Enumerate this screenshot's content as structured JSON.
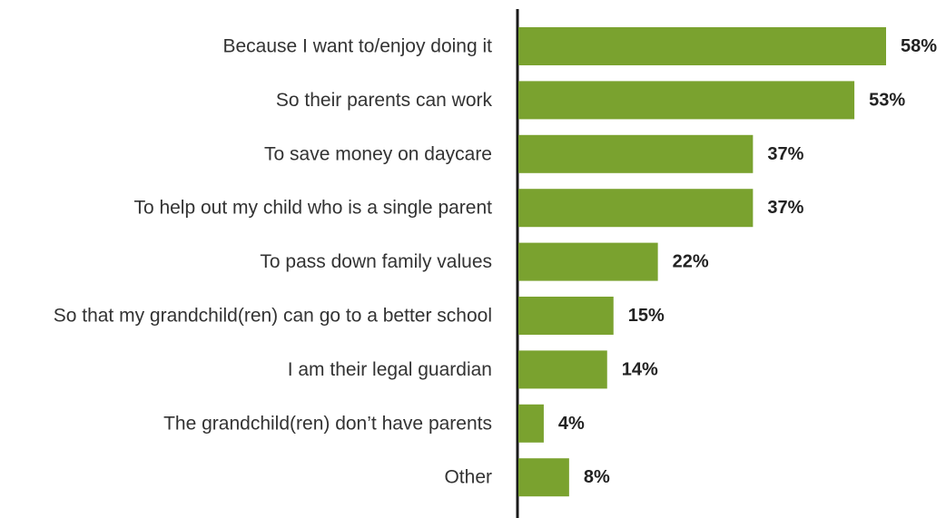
{
  "chart_data": {
    "type": "bar",
    "orientation": "horizontal",
    "categories": [
      "Because I want to/enjoy doing it",
      "So their parents can work",
      "To save money on daycare",
      "To help out my child who is a single parent",
      "To pass down family values",
      "So that my grandchild(ren) can go to a better school",
      "I am their legal guardian",
      "The grandchild(ren) don’t have parents",
      "Other"
    ],
    "values": [
      58,
      53,
      37,
      37,
      22,
      15,
      14,
      4,
      8
    ],
    "value_labels": [
      "58%",
      "53%",
      "37%",
      "37%",
      "22%",
      "15%",
      "14%",
      "4%",
      "8%"
    ],
    "unit": "%",
    "xlim": [
      0,
      58
    ],
    "grid": false,
    "legend": "none",
    "bar_color": "#7aa22f",
    "axis_color": "#1a1a1a"
  }
}
